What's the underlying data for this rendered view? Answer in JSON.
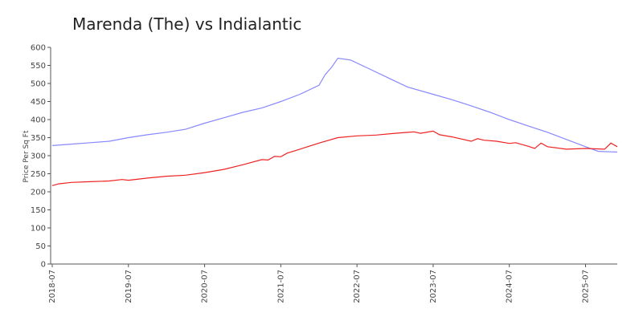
{
  "chart_data": {
    "type": "line",
    "title": "Marenda (The) vs Indialantic",
    "xlabel": "",
    "ylabel": "Price Per Sq Ft",
    "ylim": [
      0,
      600
    ],
    "yticks": [
      0,
      50,
      100,
      150,
      200,
      250,
      300,
      350,
      400,
      450,
      500,
      550,
      600
    ],
    "xlim": [
      "2018-07",
      "2025-12"
    ],
    "xticks": [
      "2018-07",
      "2019-07",
      "2020-07",
      "2021-07",
      "2022-07",
      "2023-07",
      "2024-07",
      "2025-07"
    ],
    "grid": false,
    "legend": "none",
    "series": [
      {
        "color": "#8888ff",
        "points": [
          [
            "2018-07",
            328
          ],
          [
            "2018-10",
            332
          ],
          [
            "2019-01",
            336
          ],
          [
            "2019-04",
            340
          ],
          [
            "2019-07",
            350
          ],
          [
            "2019-10",
            358
          ],
          [
            "2020-01",
            365
          ],
          [
            "2020-04",
            373
          ],
          [
            "2020-07",
            390
          ],
          [
            "2020-10",
            405
          ],
          [
            "2021-01",
            420
          ],
          [
            "2021-04",
            432
          ],
          [
            "2021-07",
            450
          ],
          [
            "2021-10",
            470
          ],
          [
            "2022-01",
            495
          ],
          [
            "2022-02",
            525
          ],
          [
            "2022-03",
            545
          ],
          [
            "2022-04",
            570
          ],
          [
            "2022-06",
            565
          ],
          [
            "2022-09",
            540
          ],
          [
            "2022-12",
            515
          ],
          [
            "2023-03",
            490
          ],
          [
            "2023-07",
            470
          ],
          [
            "2023-10",
            455
          ],
          [
            "2024-01",
            438
          ],
          [
            "2024-04",
            420
          ],
          [
            "2024-07",
            400
          ],
          [
            "2024-10",
            382
          ],
          [
            "2025-01",
            365
          ],
          [
            "2025-04",
            345
          ],
          [
            "2025-07",
            325
          ],
          [
            "2025-09",
            312
          ],
          [
            "2025-12",
            310
          ]
        ]
      },
      {
        "color": "#ee2222",
        "points": [
          [
            "2018-07",
            217
          ],
          [
            "2018-08",
            222
          ],
          [
            "2018-10",
            226
          ],
          [
            "2019-01",
            228
          ],
          [
            "2019-04",
            230
          ],
          [
            "2019-06",
            234
          ],
          [
            "2019-07",
            232
          ],
          [
            "2019-10",
            238
          ],
          [
            "2020-01",
            243
          ],
          [
            "2020-04",
            246
          ],
          [
            "2020-07",
            253
          ],
          [
            "2020-10",
            262
          ],
          [
            "2021-01",
            275
          ],
          [
            "2021-04",
            289
          ],
          [
            "2021-05",
            288
          ],
          [
            "2021-06",
            298
          ],
          [
            "2021-07",
            297
          ],
          [
            "2021-08",
            307
          ],
          [
            "2021-10",
            318
          ],
          [
            "2022-01",
            335
          ],
          [
            "2022-04",
            350
          ],
          [
            "2022-07",
            355
          ],
          [
            "2022-10",
            357
          ],
          [
            "2023-01",
            362
          ],
          [
            "2023-04",
            366
          ],
          [
            "2023-05",
            362
          ],
          [
            "2023-07",
            368
          ],
          [
            "2023-08",
            358
          ],
          [
            "2023-10",
            352
          ],
          [
            "2024-01",
            340
          ],
          [
            "2024-02",
            347
          ],
          [
            "2024-03",
            343
          ],
          [
            "2024-05",
            340
          ],
          [
            "2024-07",
            334
          ],
          [
            "2024-08",
            336
          ],
          [
            "2024-10",
            326
          ],
          [
            "2024-11",
            320
          ],
          [
            "2024-12",
            335
          ],
          [
            "2025-01",
            325
          ],
          [
            "2025-04",
            318
          ],
          [
            "2025-07",
            320
          ],
          [
            "2025-10",
            318
          ],
          [
            "2025-11",
            335
          ],
          [
            "2025-12",
            325
          ]
        ]
      }
    ]
  }
}
